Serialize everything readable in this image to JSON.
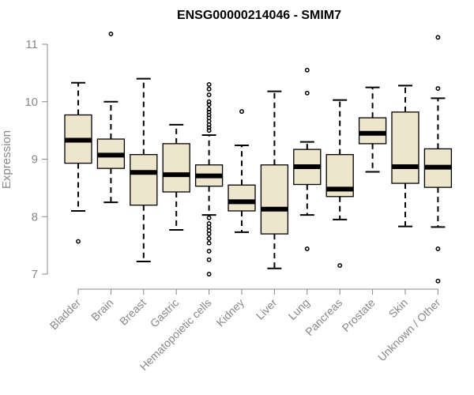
{
  "chart_data": {
    "type": "boxplot",
    "title": "ENSG00000214046 - SMIM7",
    "xlabel": "",
    "ylabel": "Expression",
    "ylim": [
      7,
      11
    ],
    "yticks": [
      7,
      8,
      9,
      10,
      11
    ],
    "categories": [
      "Bladder",
      "Brain",
      "Breast",
      "Gastric",
      "Hematopoietic cells",
      "Kidney",
      "Liver",
      "Lung",
      "Pancreas",
      "Prostate",
      "Skin",
      "Unknown / Other"
    ],
    "boxes": [
      {
        "name": "Bladder",
        "whisker_low": 8.1,
        "q1": 8.93,
        "median": 9.33,
        "q3": 9.77,
        "whisker_high": 10.33,
        "outliers": [
          7.57
        ]
      },
      {
        "name": "Brain",
        "whisker_low": 8.25,
        "q1": 8.84,
        "median": 9.07,
        "q3": 9.35,
        "whisker_high": 10.0,
        "outliers": [
          11.18
        ]
      },
      {
        "name": "Breast",
        "whisker_low": 7.22,
        "q1": 8.2,
        "median": 8.77,
        "q3": 9.08,
        "whisker_high": 10.4,
        "outliers": []
      },
      {
        "name": "Gastric",
        "whisker_low": 7.77,
        "q1": 8.43,
        "median": 8.73,
        "q3": 9.27,
        "whisker_high": 9.6,
        "outliers": []
      },
      {
        "name": "Hematopoietic cells",
        "whisker_low": 8.03,
        "q1": 8.53,
        "median": 8.71,
        "q3": 8.9,
        "whisker_high": 9.42,
        "outliers": [
          10.3,
          10.22,
          10.12,
          10.0,
          9.95,
          9.87,
          9.82,
          9.77,
          9.72,
          9.66,
          9.6,
          9.55,
          9.5,
          7.98,
          7.88,
          7.82,
          7.76,
          7.7,
          7.62,
          7.54,
          7.4,
          7.25,
          7.0
        ]
      },
      {
        "name": "Kidney",
        "whisker_low": 7.73,
        "q1": 8.1,
        "median": 8.26,
        "q3": 8.55,
        "whisker_high": 9.24,
        "outliers": [
          9.83
        ]
      },
      {
        "name": "Liver",
        "whisker_low": 7.1,
        "q1": 7.7,
        "median": 8.13,
        "q3": 8.9,
        "whisker_high": 10.18,
        "outliers": []
      },
      {
        "name": "Lung",
        "whisker_low": 8.03,
        "q1": 8.56,
        "median": 8.87,
        "q3": 9.17,
        "whisker_high": 9.3,
        "outliers": [
          10.55,
          10.15,
          7.44
        ]
      },
      {
        "name": "Pancreas",
        "whisker_low": 7.95,
        "q1": 8.35,
        "median": 8.48,
        "q3": 9.08,
        "whisker_high": 10.03,
        "outliers": [
          7.15
        ]
      },
      {
        "name": "Prostate",
        "whisker_low": 8.78,
        "q1": 9.27,
        "median": 9.45,
        "q3": 9.72,
        "whisker_high": 10.25,
        "outliers": []
      },
      {
        "name": "Skin",
        "whisker_low": 7.83,
        "q1": 8.58,
        "median": 8.87,
        "q3": 9.82,
        "whisker_high": 10.28,
        "outliers": []
      },
      {
        "name": "Unknown / Other",
        "whisker_low": 7.82,
        "q1": 8.51,
        "median": 8.86,
        "q3": 9.18,
        "whisker_high": 10.06,
        "outliers": [
          11.12,
          10.23,
          7.44,
          6.88
        ]
      }
    ]
  }
}
